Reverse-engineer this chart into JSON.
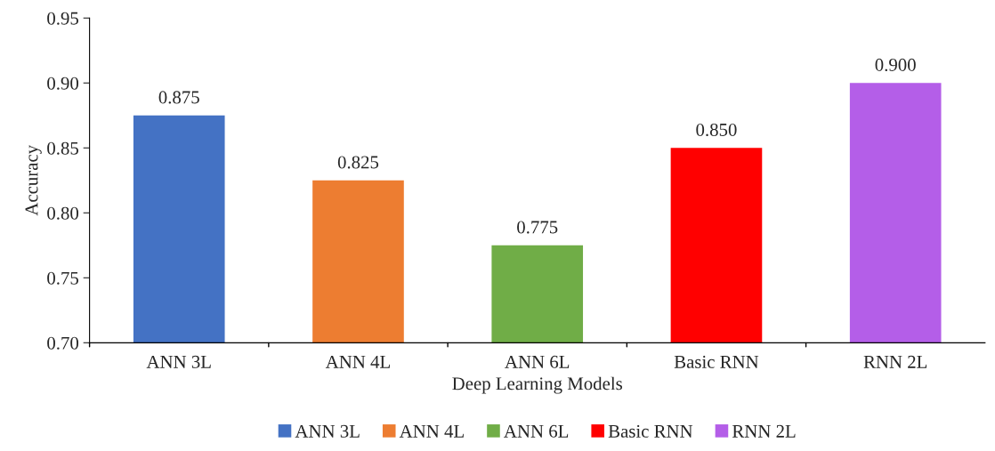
{
  "chart_data": {
    "type": "bar",
    "xlabel": "Deep Learning Models",
    "ylabel": "Accuracy",
    "categories": [
      "ANN 3L",
      "ANN 4L",
      "ANN 6L",
      "Basic RNN",
      "RNN 2L"
    ],
    "series": [
      {
        "name": "ANN 3L",
        "color": "#4472c4",
        "values": [
          0.875,
          null,
          null,
          null,
          null
        ],
        "value_labels": [
          "0.875",
          null,
          null,
          null,
          null
        ]
      },
      {
        "name": "ANN 4L",
        "color": "#ed7d31",
        "values": [
          null,
          0.825,
          null,
          null,
          null
        ],
        "value_labels": [
          null,
          "0.825",
          null,
          null,
          null
        ]
      },
      {
        "name": "ANN 6L",
        "color": "#70ad47",
        "values": [
          null,
          null,
          0.775,
          null,
          null
        ],
        "value_labels": [
          null,
          null,
          "0.775",
          null,
          null
        ]
      },
      {
        "name": "Basic RNN",
        "color": "#ff0000",
        "values": [
          null,
          null,
          null,
          0.85,
          null
        ],
        "value_labels": [
          null,
          null,
          null,
          "0.850",
          null
        ]
      },
      {
        "name": "RNN 2L",
        "color": "#b45ee8",
        "values": [
          null,
          null,
          null,
          null,
          0.9
        ],
        "value_labels": [
          null,
          null,
          null,
          null,
          "0.900"
        ]
      }
    ],
    "ylim": [
      0.7,
      0.95
    ],
    "yticks": [
      {
        "value": 0.7,
        "label": "0.70"
      },
      {
        "value": 0.75,
        "label": "0.75"
      },
      {
        "value": 0.8,
        "label": "0.80"
      },
      {
        "value": 0.85,
        "label": "0.85"
      },
      {
        "value": 0.9,
        "label": "0.90"
      },
      {
        "value": 0.95,
        "label": "0.95"
      }
    ],
    "grid": false,
    "legend": "bottom"
  }
}
